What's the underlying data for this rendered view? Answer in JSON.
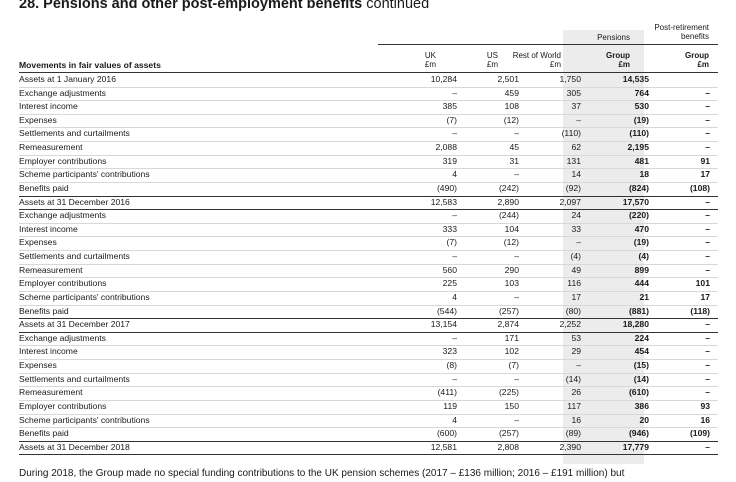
{
  "title": {
    "main": "28. Pensions and other post-employment benefits",
    "suffix": "continued"
  },
  "header": {
    "post_retirement_line1": "Post-retirement",
    "post_retirement_line2": "benefits",
    "pensions": "Pensions",
    "uk": "UK",
    "us": "US",
    "rest_of_world": "Rest of World",
    "group": "Group",
    "group2": "Group",
    "currency": "£m",
    "row_header": "Movements in fair values of assets"
  },
  "rows": [
    {
      "label": "Assets at 1 January 2016",
      "uk": "10,284",
      "us": "2,501",
      "row": "1,750",
      "group": "14,535",
      "post": ""
    },
    {
      "label": "Exchange adjustments",
      "uk": "–",
      "us": "459",
      "row": "305",
      "group": "764",
      "post": "–"
    },
    {
      "label": "Interest income",
      "uk": "385",
      "us": "108",
      "row": "37",
      "group": "530",
      "post": "–"
    },
    {
      "label": "Expenses",
      "uk": "(7)",
      "us": "(12)",
      "row": "–",
      "group": "(19)",
      "post": "–"
    },
    {
      "label": "Settlements and curtailments",
      "uk": "–",
      "us": "–",
      "row": "(110)",
      "group": "(110)",
      "post": "–"
    },
    {
      "label": "Remeasurement",
      "uk": "2,088",
      "us": "45",
      "row": "62",
      "group": "2,195",
      "post": "–"
    },
    {
      "label": "Employer contributions",
      "uk": "319",
      "us": "31",
      "row": "131",
      "group": "481",
      "post": "91"
    },
    {
      "label": "Scheme participants' contributions",
      "uk": "4",
      "us": "–",
      "row": "14",
      "group": "18",
      "post": "17"
    },
    {
      "label": "Benefits paid",
      "uk": "(490)",
      "us": "(242)",
      "row": "(92)",
      "group": "(824)",
      "post": "(108)"
    },
    {
      "label": "Assets at 31 December 2016",
      "uk": "12,583",
      "us": "2,890",
      "row": "2,097",
      "group": "17,570",
      "post": "–"
    },
    {
      "label": "Exchange adjustments",
      "uk": "–",
      "us": "(244)",
      "row": "24",
      "group": "(220)",
      "post": "–"
    },
    {
      "label": "Interest income",
      "uk": "333",
      "us": "104",
      "row": "33",
      "group": "470",
      "post": "–"
    },
    {
      "label": "Expenses",
      "uk": "(7)",
      "us": "(12)",
      "row": "–",
      "group": "(19)",
      "post": "–"
    },
    {
      "label": "Settlements and curtailments",
      "uk": "–",
      "us": "–",
      "row": "(4)",
      "group": "(4)",
      "post": "–"
    },
    {
      "label": "Remeasurement",
      "uk": "560",
      "us": "290",
      "row": "49",
      "group": "899",
      "post": "–"
    },
    {
      "label": "Employer contributions",
      "uk": "225",
      "us": "103",
      "row": "116",
      "group": "444",
      "post": "101"
    },
    {
      "label": "Scheme participants' contributions",
      "uk": "4",
      "us": "–",
      "row": "17",
      "group": "21",
      "post": "17"
    },
    {
      "label": "Benefits paid",
      "uk": "(544)",
      "us": "(257)",
      "row": "(80)",
      "group": "(881)",
      "post": "(118)"
    },
    {
      "label": "Assets at 31 December 2017",
      "uk": "13,154",
      "us": "2,874",
      "row": "2,252",
      "group": "18,280",
      "post": "–"
    },
    {
      "label": "Exchange adjustments",
      "uk": "–",
      "us": "171",
      "row": "53",
      "group": "224",
      "post": "–"
    },
    {
      "label": "Interest income",
      "uk": "323",
      "us": "102",
      "row": "29",
      "group": "454",
      "post": "–"
    },
    {
      "label": "Expenses",
      "uk": "(8)",
      "us": "(7)",
      "row": "–",
      "group": "(15)",
      "post": "–"
    },
    {
      "label": "Settlements and curtailments",
      "uk": "–",
      "us": "–",
      "row": "(14)",
      "group": "(14)",
      "post": "–"
    },
    {
      "label": "Remeasurement",
      "uk": "(411)",
      "us": "(225)",
      "row": "26",
      "group": "(610)",
      "post": "–"
    },
    {
      "label": "Employer contributions",
      "uk": "119",
      "us": "150",
      "row": "117",
      "group": "386",
      "post": "93"
    },
    {
      "label": "Scheme participants' contributions",
      "uk": "4",
      "us": "–",
      "row": "16",
      "group": "20",
      "post": "16"
    },
    {
      "label": "Benefits paid",
      "uk": "(600)",
      "us": "(257)",
      "row": "(89)",
      "group": "(946)",
      "post": "(109)"
    },
    {
      "label": "Assets at 31 December 2018",
      "uk": "12,581",
      "us": "2,808",
      "row": "2,390",
      "group": "17,779",
      "post": "–"
    }
  ],
  "footer_text": "During 2018, the Group made no special funding contributions to the UK pension schemes (2017 – £136 million; 2016 – £191 million) but"
}
